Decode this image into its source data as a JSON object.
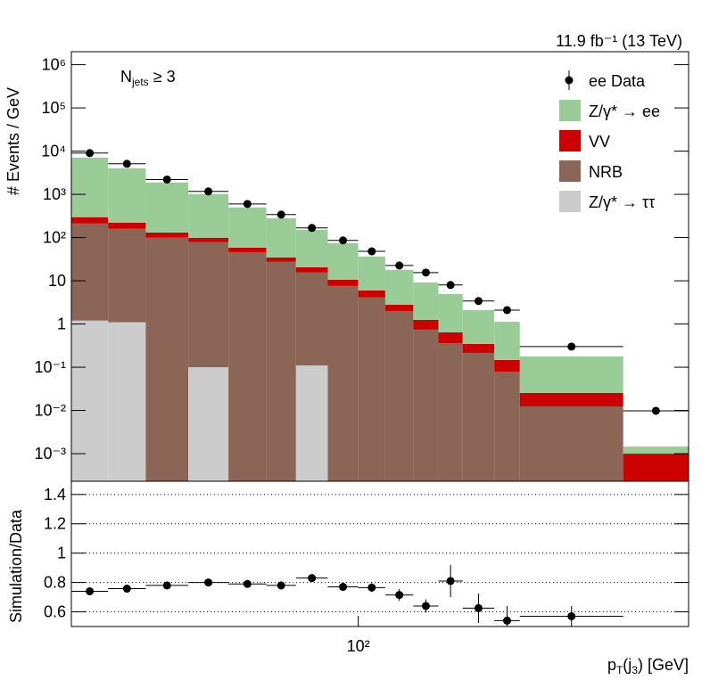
{
  "chart_data": [
    {
      "type": "histogram",
      "stacked": true,
      "lumi": "11.9 fb⁻¹ (13 TeV)",
      "annotation": {
        "parts": [
          "N",
          "jets",
          " ≥ 3"
        ]
      },
      "ylabel": "# Events / GeV",
      "bins": [
        30,
        35,
        41,
        49,
        58,
        68,
        77,
        88,
        100,
        112,
        126,
        140,
        155,
        177,
        197,
        304,
        400
      ],
      "xlim": [
        30,
        400
      ],
      "log_x": true,
      "ylim": [
        0.00023,
        2000000
      ],
      "log_y": true,
      "yticks": [
        {
          "value": 0.001,
          "label": "10⁻³"
        },
        {
          "value": 0.01,
          "label": "10⁻²"
        },
        {
          "value": 0.1,
          "label": "10⁻¹"
        },
        1,
        10,
        {
          "value": 100,
          "label": "10²"
        },
        {
          "value": 1000,
          "label": "10³"
        },
        {
          "value": 10000,
          "label": "10⁴"
        },
        {
          "value": 100000,
          "label": "10⁵"
        },
        {
          "value": 1000000,
          "label": "10⁶"
        }
      ],
      "legend": "upper right",
      "data": {
        "name": "ee Data",
        "color": "#000000",
        "values": [
          9000,
          5100,
          2200,
          1170,
          600,
          340,
          167,
          86,
          48,
          22.6,
          15.5,
          8.0,
          3.4,
          2.1,
          0.3,
          0.0098
        ]
      },
      "series": [
        {
          "name": "Z/γ* → ee",
          "color": "#9acc98",
          "values": [
            6800,
            3800,
            1750,
            920,
            440,
            246,
            131,
            64,
            30.5,
            15.1,
            7.9,
            4.3,
            1.75,
            0.98,
            0.152,
            0.00046
          ]
        },
        {
          "name": "VV",
          "color": "#cc0000",
          "values": [
            85,
            63,
            32,
            21,
            12.6,
            7.4,
            5.1,
            3.0,
            1.9,
            0.8,
            0.51,
            0.28,
            0.13,
            0.068,
            0.013,
            0.001
          ]
        },
        {
          "name": "NRB",
          "color": "#8b6555",
          "values": [
            210,
            158,
            99,
            78,
            46,
            27.4,
            15.4,
            7.6,
            4.1,
            2.0,
            0.74,
            0.36,
            0.215,
            0.079,
            0.0124,
            0
          ]
        },
        {
          "name": "Z/γ* → ττ",
          "color": "#cccccc",
          "values": [
            1.2,
            1.1,
            0,
            0.1,
            0,
            0,
            0.11,
            0,
            0,
            0,
            0,
            0,
            0,
            0,
            0,
            0
          ]
        }
      ]
    },
    {
      "type": "scatter",
      "ylabel": "Simulation/Data",
      "xlabel": {
        "parts": [
          "p",
          "T",
          "(j",
          "3",
          ") [GeV]"
        ]
      },
      "bins": [
        30,
        35,
        41,
        49,
        58,
        68,
        77,
        88,
        100,
        112,
        126,
        140,
        155,
        177,
        197,
        304,
        400
      ],
      "xlim": [
        30,
        400
      ],
      "log_x": true,
      "xticks": [
        {
          "value": 100,
          "label": "10²"
        }
      ],
      "ylim": [
        0.5,
        1.49
      ],
      "yticks": [
        0.6,
        0.8,
        1,
        1.2,
        1.4
      ],
      "grid": true,
      "color": "#000000",
      "values": [
        0.74,
        0.758,
        0.78,
        0.8,
        0.79,
        0.78,
        0.83,
        0.77,
        0.765,
        0.715,
        0.64,
        0.81,
        0.625,
        0.54,
        0.57,
        null
      ],
      "errors": [
        0.01,
        0.01,
        0.01,
        0.01,
        0.015,
        0.015,
        0.02,
        0.025,
        0.03,
        0.04,
        0.045,
        0.11,
        0.1,
        0.1,
        0.07,
        null
      ]
    }
  ]
}
